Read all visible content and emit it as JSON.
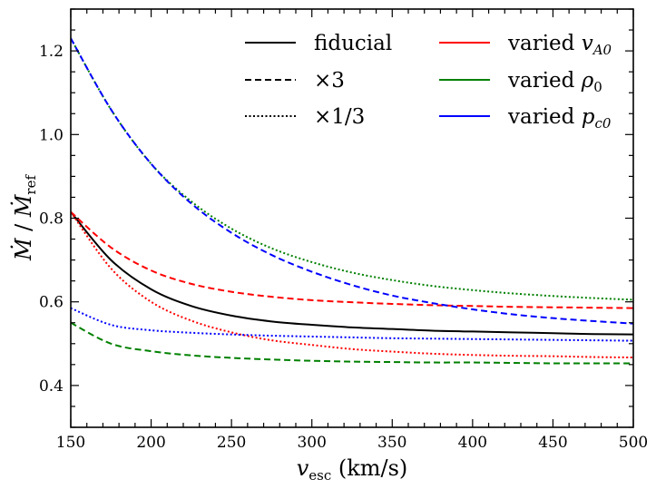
{
  "chart_data": {
    "type": "line",
    "xlabel": "v_esc (km/s)",
    "xlabel_main": "v",
    "xlabel_sub": "esc",
    "xlabel_units": " (km/s)",
    "ylabel": "Ṁ / Ṁ_ref",
    "ylabel_main": "Ṁ",
    "ylabel_sep": " / ",
    "ylabel_main2": "Ṁ",
    "ylabel_sub": "ref",
    "xlim": [
      150,
      500
    ],
    "ylim": [
      0.3,
      1.3
    ],
    "xticks": [
      "150",
      "200",
      "250",
      "300",
      "350",
      "400",
      "450",
      "500"
    ],
    "yticks": [
      "0.4",
      "0.6",
      "0.8",
      "1.0",
      "1.2"
    ],
    "grid": false,
    "legend_position": "top-right",
    "legend": {
      "styles": [
        {
          "label": "fiducial",
          "dash": "solid"
        },
        {
          "label": "×3",
          "dash": "dashed"
        },
        {
          "label": "×1/3",
          "dash": "dotted"
        }
      ],
      "colors": [
        {
          "label": "varied v_A0",
          "prefix": "varied ",
          "main": "v",
          "sub": "A0",
          "color": "#ff0000"
        },
        {
          "label": "varied ρ_0",
          "prefix": "varied ",
          "main": "ρ",
          "sub": "0",
          "color": "#008000"
        },
        {
          "label": "varied p_c0",
          "prefix": "varied ",
          "main": "p",
          "sub": "c0",
          "color": "#0000ff"
        }
      ]
    },
    "x": [
      150,
      175,
      200,
      225,
      250,
      275,
      300,
      325,
      350,
      375,
      400,
      425,
      450,
      475,
      500
    ],
    "series": [
      {
        "name": "fiducial",
        "color": "#000000",
        "dash": "solid",
        "values": [
          0.815,
          0.7,
          0.63,
          0.59,
          0.567,
          0.553,
          0.545,
          0.539,
          0.535,
          0.531,
          0.529,
          0.527,
          0.525,
          0.523,
          0.522
        ]
      },
      {
        "name": "varied v_A0 ×3",
        "color": "#ff0000",
        "dash": "dashed",
        "values": [
          0.815,
          0.73,
          0.675,
          0.643,
          0.624,
          0.612,
          0.604,
          0.599,
          0.595,
          0.592,
          0.59,
          0.588,
          0.587,
          0.586,
          0.585
        ]
      },
      {
        "name": "varied v_A0 ×1/3",
        "color": "#ff0000",
        "dash": "dotted",
        "values": [
          0.815,
          0.68,
          0.6,
          0.555,
          0.527,
          0.508,
          0.497,
          0.487,
          0.481,
          0.476,
          0.473,
          0.471,
          0.47,
          0.468,
          0.467
        ]
      },
      {
        "name": "varied ρ_0 ×3",
        "color": "#008000",
        "dash": "dashed",
        "values": [
          0.55,
          0.5,
          0.482,
          0.472,
          0.466,
          0.462,
          0.459,
          0.457,
          0.456,
          0.455,
          0.455,
          0.454,
          0.453,
          0.453,
          0.453
        ]
      },
      {
        "name": "varied ρ_0 ×1/3",
        "color": "#008000",
        "dash": "dotted",
        "values": [
          1.23,
          1.06,
          0.93,
          0.84,
          0.775,
          0.728,
          0.695,
          0.67,
          0.652,
          0.638,
          0.628,
          0.62,
          0.614,
          0.609,
          0.605
        ]
      },
      {
        "name": "varied p_c0 ×3",
        "color": "#0000ff",
        "dash": "dashed",
        "values": [
          1.23,
          1.06,
          0.93,
          0.835,
          0.765,
          0.712,
          0.672,
          0.64,
          0.615,
          0.597,
          0.582,
          0.57,
          0.561,
          0.554,
          0.548
        ]
      },
      {
        "name": "varied p_c0 ×1/3",
        "color": "#0000ff",
        "dash": "dotted",
        "values": [
          0.585,
          0.545,
          0.532,
          0.526,
          0.522,
          0.519,
          0.517,
          0.515,
          0.513,
          0.512,
          0.511,
          0.51,
          0.509,
          0.508,
          0.507
        ]
      }
    ]
  }
}
